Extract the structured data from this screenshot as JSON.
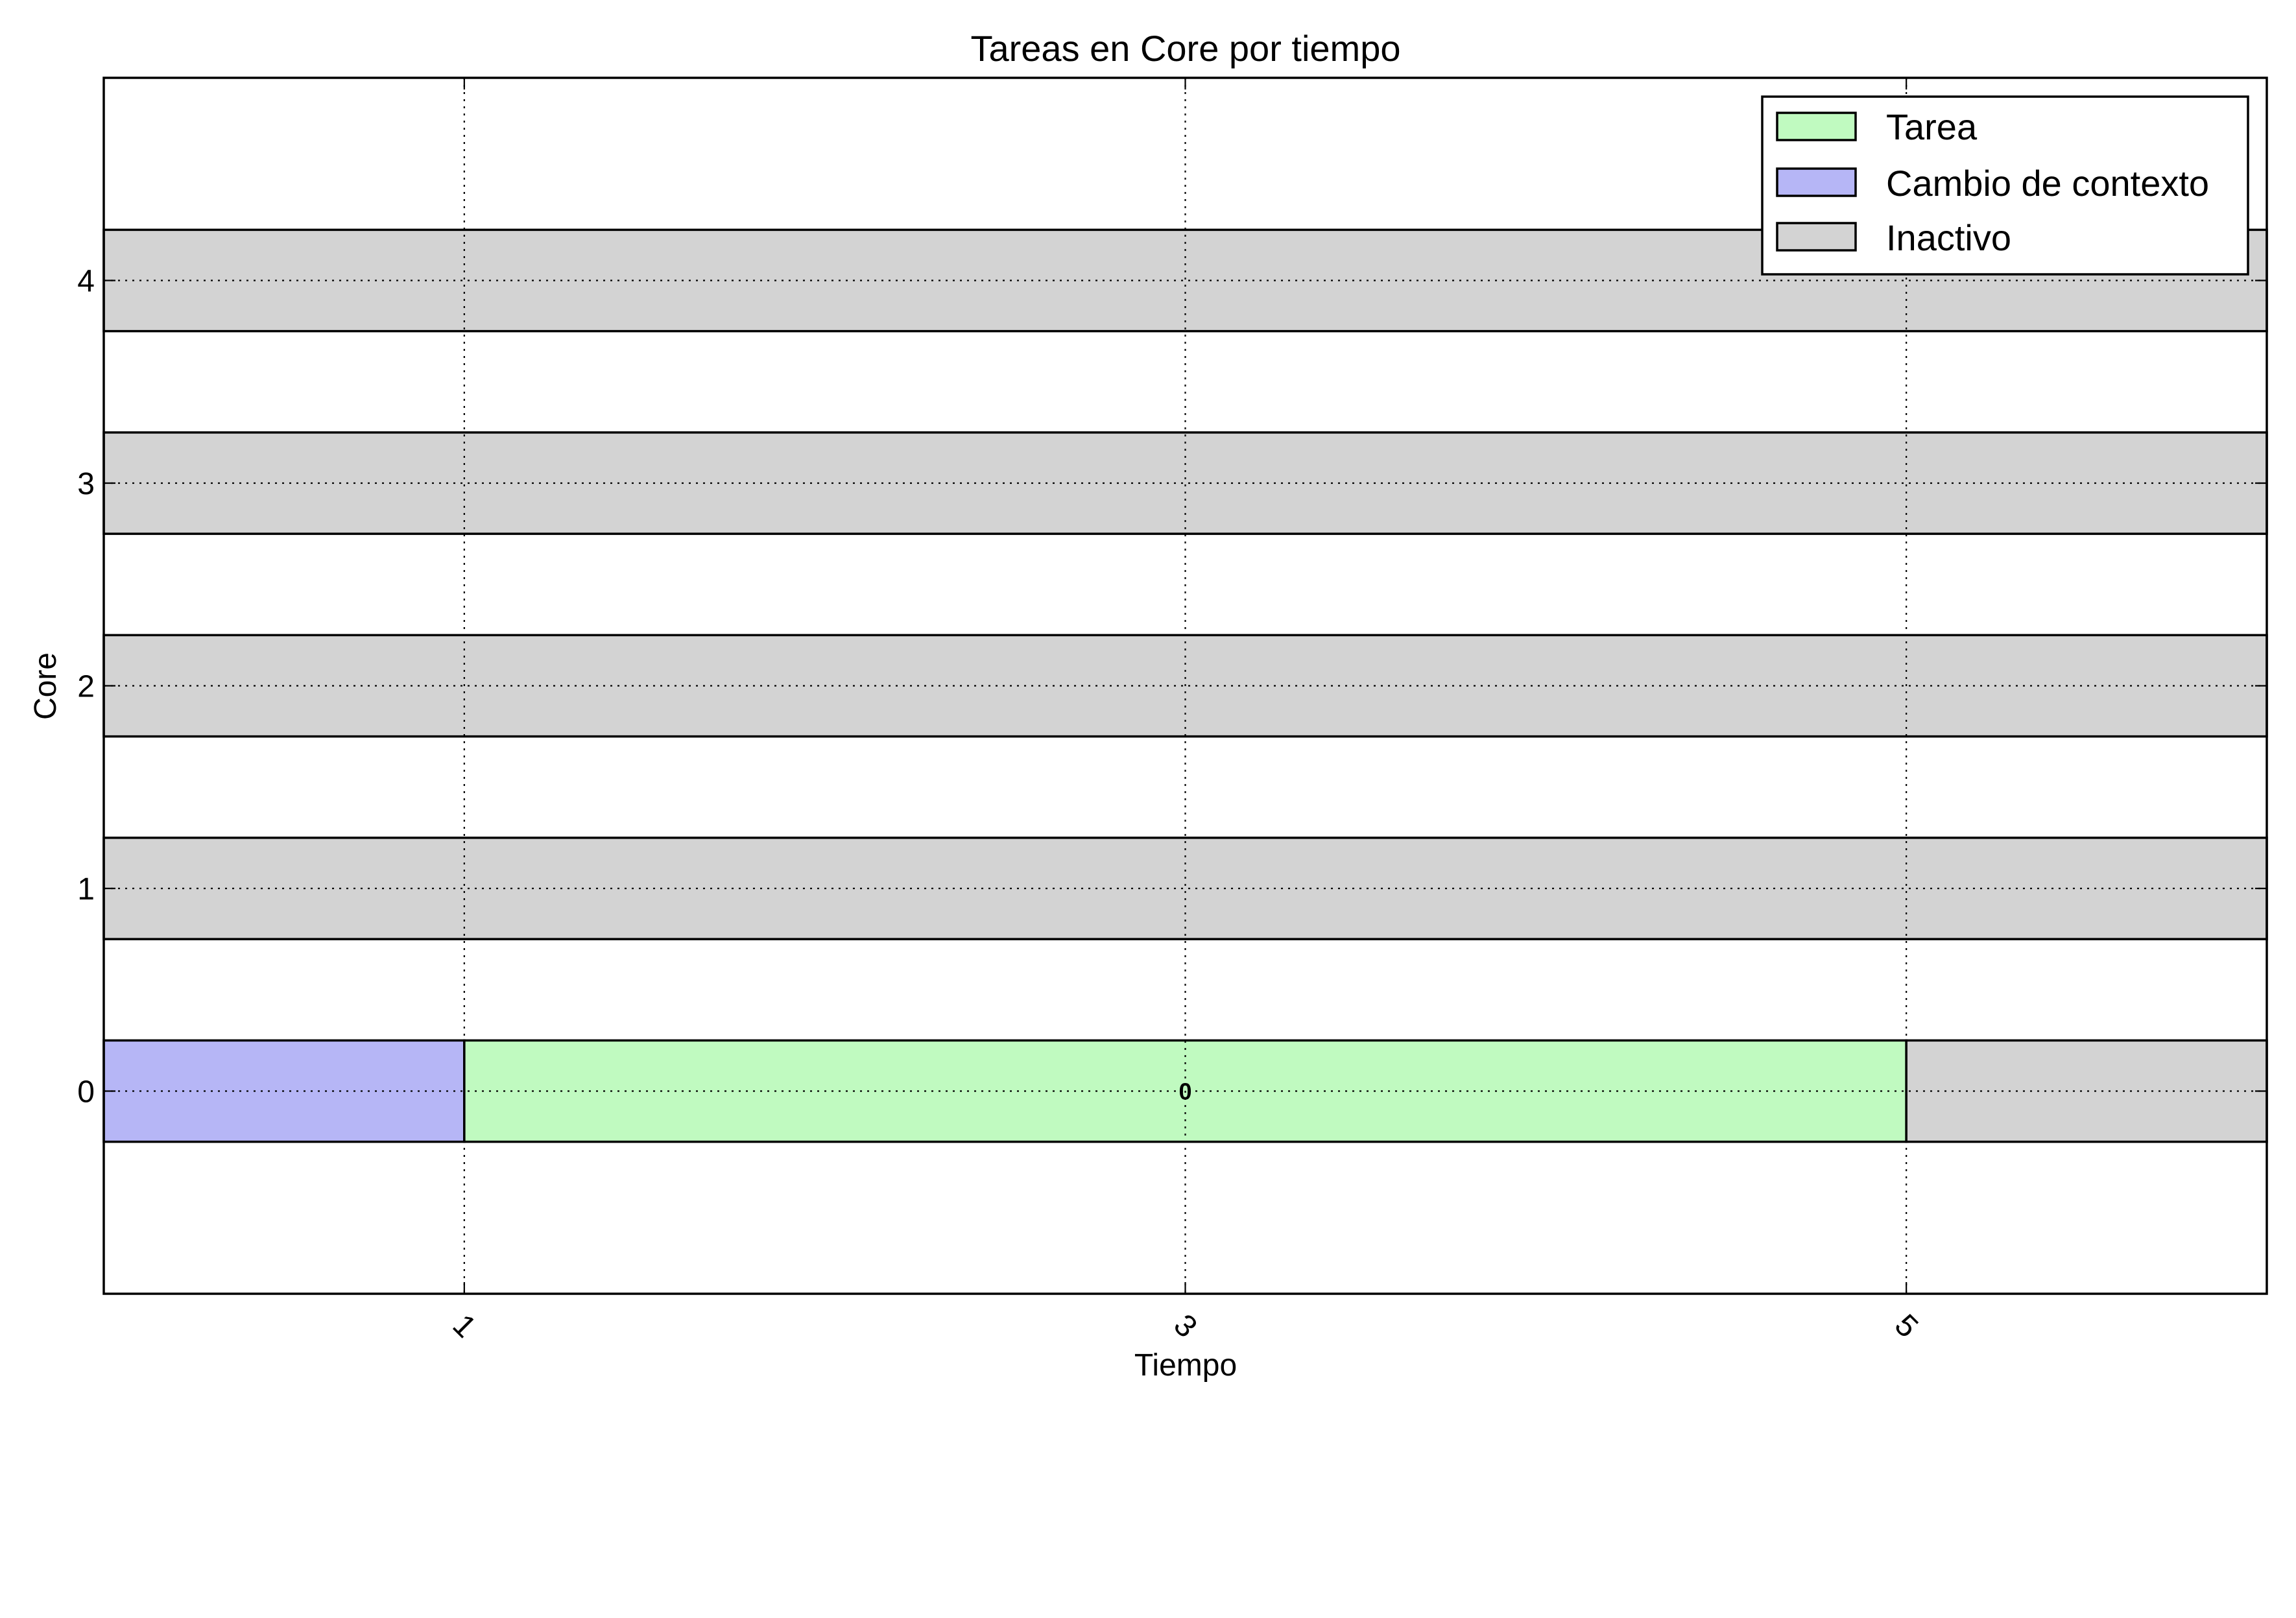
{
  "chart_data": {
    "type": "bar",
    "orientation": "horizontal",
    "stacked": true,
    "title": "Tareas en Core por tiempo",
    "xlabel": "Tiempo",
    "ylabel": "Core",
    "xlim": [
      0,
      6
    ],
    "ylim": [
      -1,
      5
    ],
    "xticks": [
      1,
      3,
      5
    ],
    "xtick_labels": [
      "1",
      "3",
      "5"
    ],
    "xtick_rotation_deg": 45,
    "yticks": [
      0,
      1,
      2,
      3,
      4
    ],
    "ytick_labels": [
      "0",
      "1",
      "2",
      "3",
      "4"
    ],
    "grid": true,
    "bar_height": 0.5,
    "colors": {
      "Tarea": "#c0fac0",
      "Cambio de contexto": "#b6b6f6",
      "Inactivo": "#d3d3d3"
    },
    "legend": {
      "placement": "top-right",
      "entries": [
        "Tarea",
        "Cambio de contexto",
        "Inactivo"
      ]
    },
    "series": [
      {
        "category": "Cambio de contexto",
        "core": 0,
        "start": 0,
        "end": 1,
        "label": ""
      },
      {
        "category": "Tarea",
        "core": 0,
        "start": 1,
        "end": 5,
        "label": "0"
      },
      {
        "category": "Inactivo",
        "core": 0,
        "start": 5,
        "end": 6,
        "label": ""
      },
      {
        "category": "Inactivo",
        "core": 1,
        "start": 0,
        "end": 6,
        "label": ""
      },
      {
        "category": "Inactivo",
        "core": 2,
        "start": 0,
        "end": 6,
        "label": ""
      },
      {
        "category": "Inactivo",
        "core": 3,
        "start": 0,
        "end": 6,
        "label": ""
      },
      {
        "category": "Inactivo",
        "core": 4,
        "start": 0,
        "end": 6,
        "label": ""
      }
    ]
  }
}
